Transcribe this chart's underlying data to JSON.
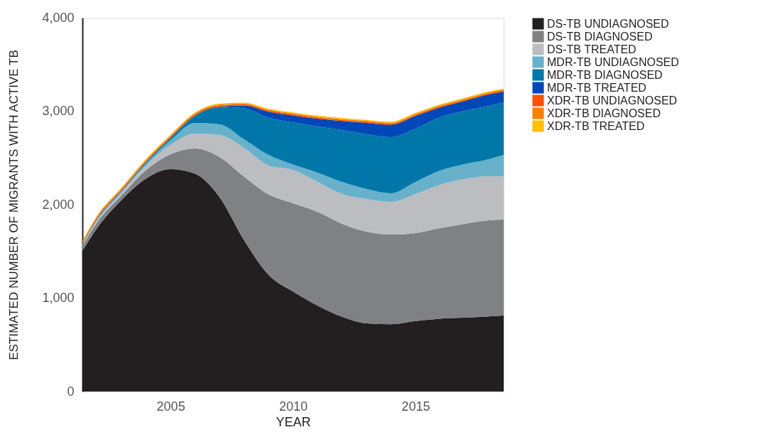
{
  "chart_data": {
    "type": "area",
    "stacked": true,
    "xlabel": "YEAR",
    "ylabel": "ESTIMATED NUMBER OF MIGRANTS WITH ACTIVE TB",
    "x": [
      2001.4,
      2002,
      2003,
      2004,
      2005,
      2006,
      2007,
      2008,
      2009,
      2010,
      2011,
      2012,
      2013,
      2014,
      2015,
      2016,
      2017,
      2018,
      2018.6
    ],
    "xlim": [
      2001.4,
      2018.6
    ],
    "xticks": [
      2005,
      2010,
      2015
    ],
    "ylim": [
      0,
      4000
    ],
    "yticks": [
      0,
      {
        "value": 1000,
        "label": "1,000"
      },
      {
        "value": 2000,
        "label": "2,000"
      },
      {
        "value": 3000,
        "label": "3,000"
      },
      {
        "value": 4000,
        "label": "4,000"
      }
    ],
    "grid": false,
    "legend": "right",
    "series": [
      {
        "name": "DS-TB UNDIAGNOSED",
        "color": "#231f20",
        "values": [
          1506,
          1750,
          2050,
          2280,
          2380,
          2330,
          2080,
          1620,
          1250,
          1070,
          920,
          800,
          730,
          720,
          755,
          780,
          790,
          805,
          813
        ]
      },
      {
        "name": "DS-TB DIAGNOSED",
        "color": "#808184",
        "values": [
          54,
          60,
          50,
          90,
          160,
          270,
          430,
          680,
          860,
          945,
          1004,
          995,
          981,
          960,
          941,
          969,
          1005,
          1028,
          1027
        ]
      },
      {
        "name": "DS-TB TREATED",
        "color": "#bcbdc1",
        "values": [
          10,
          20,
          30,
          50,
          100,
          160,
          235,
          308,
          308,
          355,
          319,
          319,
          350,
          350,
          418,
          464,
          479,
          471,
          464
        ]
      },
      {
        "name": "MDR-TB UNDIAGNOSED",
        "color": "#67b1cb",
        "values": [
          5,
          10,
          10,
          20,
          50,
          115,
          115,
          92,
          114,
          60,
          99,
          129,
          106,
          92,
          129,
          152,
          159,
          183,
          228
        ]
      },
      {
        "name": "MDR-TB DIAGNOSED",
        "color": "#0077a8",
        "values": [
          5,
          10,
          10,
          15,
          25,
          75,
          185,
          330,
          398,
          450,
          494,
          555,
          586,
          600,
          570,
          570,
          571,
          570,
          563
        ]
      },
      {
        "name": "MDR-TB TREATED",
        "color": "#0047b8",
        "values": [
          2,
          2,
          2,
          3,
          3,
          5,
          5,
          30,
          65,
          75,
          84,
          97,
          122,
          133,
          137,
          105,
          106,
          123,
          115
        ]
      },
      {
        "name": "XDR-TB UNDIAGNOSED",
        "color": "#ff4f00",
        "values": [
          12,
          12,
          12,
          12,
          12,
          12,
          12,
          12,
          12,
          12,
          12,
          12,
          12,
          12,
          12,
          12,
          12,
          12,
          12
        ]
      },
      {
        "name": "XDR-TB DIAGNOSED",
        "color": "#ff7f00",
        "values": [
          10,
          10,
          10,
          10,
          10,
          10,
          10,
          10,
          10,
          10,
          10,
          10,
          10,
          10,
          10,
          10,
          10,
          10,
          10
        ]
      },
      {
        "name": "XDR-TB TREATED",
        "color": "#ffc000",
        "values": [
          10,
          10,
          10,
          10,
          10,
          10,
          10,
          10,
          10,
          10,
          10,
          10,
          10,
          10,
          10,
          10,
          10,
          10,
          10
        ]
      }
    ]
  }
}
